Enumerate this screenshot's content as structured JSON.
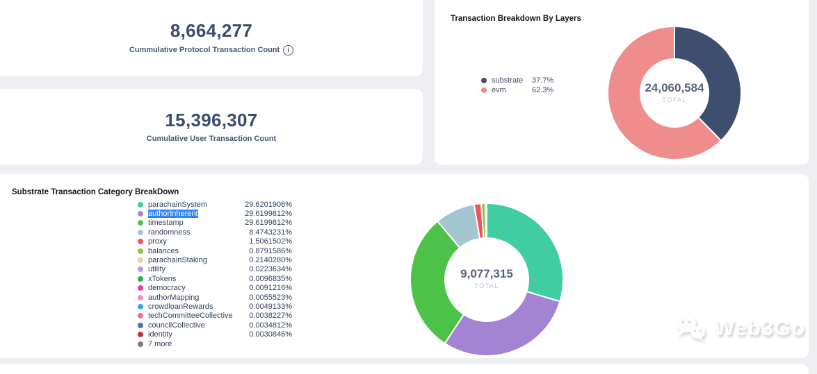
{
  "colors": {
    "page_background": "#edeff3",
    "card_background": "#ffffff",
    "stat_number": "#3c4c6b",
    "legend_selection": "#2d84f7"
  },
  "cards": [
    {
      "value": "8,664,277",
      "label": "Cummulative Protocol Transaction Count",
      "info_icon": "i"
    },
    {
      "value": "15,396,307",
      "label": "Cumulative User Transaction Count"
    }
  ],
  "watermark": {
    "text": "Web3Go"
  },
  "chart_data": [
    {
      "type": "pie",
      "donut": true,
      "title": "Transaction Breakdown By Layers",
      "start_angle": "top",
      "direction": "clockwise",
      "legend_position": "left",
      "center_label": "24,060,584",
      "center_sublabel": "TOTAL",
      "slices": [
        {
          "name": "substrate",
          "value": 37.7,
          "display": "37.7%",
          "color": "#3e4e6e"
        },
        {
          "name": "evm",
          "value": 62.3,
          "display": "62.3%",
          "color": "#ef8d8d"
        }
      ]
    },
    {
      "type": "pie",
      "donut": true,
      "title": "Substrate Transaction Category BreakDown",
      "start_angle": "top",
      "direction": "clockwise",
      "legend_position": "left",
      "center_label": "9,077,315",
      "center_sublabel": "TOTAL",
      "slices": [
        {
          "name": "parachainSystem",
          "value": 29.6201906,
          "display": "29.6201906%",
          "color": "#41cda2"
        },
        {
          "name": "authorInherent",
          "value": 29.6199812,
          "display": "29.6199812%",
          "color": "#a284d3",
          "selected": true
        },
        {
          "name": "timestamp",
          "value": 29.6199812,
          "display": "29.6199812%",
          "color": "#4cc348"
        },
        {
          "name": "randomness",
          "value": 8.4743231,
          "display": "8.4743231%",
          "color": "#a2c5cf"
        },
        {
          "name": "proxy",
          "value": 1.5061502,
          "display": "1.5061502%",
          "color": "#f1555c"
        },
        {
          "name": "balances",
          "value": 0.8791586,
          "display": "0.8791586%",
          "color": "#8cc450"
        },
        {
          "name": "parachainStaking",
          "value": 0.214028,
          "display": "0.2140280%",
          "color": "#e5cf9c"
        },
        {
          "name": "utility",
          "value": 0.0223634,
          "display": "0.0223634%",
          "color": "#b49ddb"
        },
        {
          "name": "xTokens",
          "value": 0.0096835,
          "display": "0.0096835%",
          "color": "#38a94a"
        },
        {
          "name": "democracy",
          "value": 0.0091216,
          "display": "0.0091216%",
          "color": "#ed3e98"
        },
        {
          "name": "authorMapping",
          "value": 0.0055523,
          "display": "0.0055523%",
          "color": "#f48fb8"
        },
        {
          "name": "crowdloanRewards",
          "value": 0.0049133,
          "display": "0.0049133%",
          "color": "#3f9ff0"
        },
        {
          "name": "techCommitteeCollective",
          "value": 0.0038227,
          "display": "0.0038227%",
          "color": "#ef6a9e"
        },
        {
          "name": "councilCollective",
          "value": 0.0034812,
          "display": "0.0034812%",
          "color": "#5a68c0"
        },
        {
          "name": "identity",
          "value": 0.0030846,
          "display": "0.0030846%",
          "color": "#bf3232"
        },
        {
          "name": "7 more",
          "value": null,
          "display": "",
          "color": "#7a7a7a",
          "legend_only": true
        }
      ]
    }
  ]
}
